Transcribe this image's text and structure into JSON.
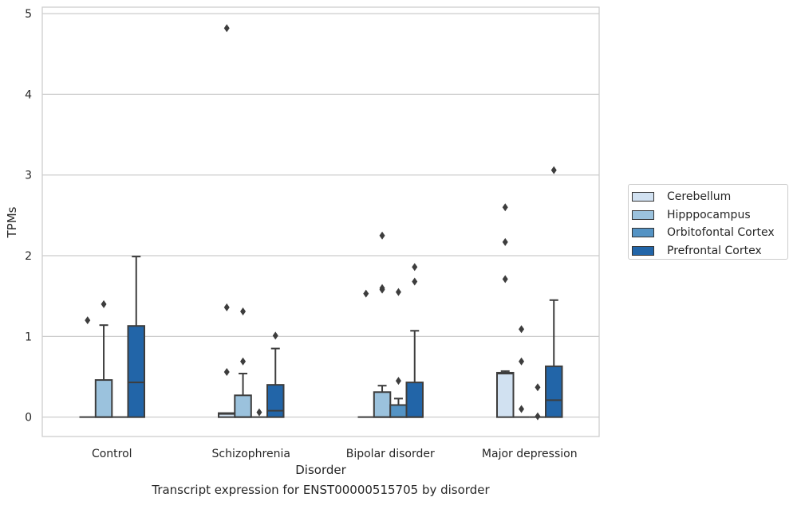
{
  "caption": "Transcript expression for ENST00000515705 by disorder",
  "chart_data": {
    "type": "boxplot",
    "xlabel": "Disorder",
    "ylabel": "TPMs",
    "ylim": [
      -0.24,
      5.08
    ],
    "yticks": [
      0,
      1,
      2,
      3,
      4,
      5
    ],
    "grid": "horizontal",
    "legend_position": "right",
    "categories": [
      "Control",
      "Schizophrenia",
      "Bipolar disorder",
      "Major depression"
    ],
    "series": [
      {
        "name": "Cerebellum",
        "color": "#d1e1f1",
        "boxes": [
          {
            "q1": 0,
            "median": 0,
            "q3": 0,
            "whislo": 0,
            "whishi": 0,
            "fliers": [
              1.2
            ]
          },
          {
            "q1": 0,
            "median": 0.04,
            "q3": 0.05,
            "whislo": 0,
            "whishi": 0.05,
            "fliers": [
              0.56,
              1.36,
              4.82
            ]
          },
          {
            "q1": 0,
            "median": 0,
            "q3": 0,
            "whislo": 0,
            "whishi": 0,
            "fliers": [
              1.53
            ]
          },
          {
            "q1": 0,
            "median": 0.54,
            "q3": 0.55,
            "whislo": 0,
            "whishi": 0.57,
            "fliers": [
              1.71,
              2.17,
              2.6
            ]
          }
        ]
      },
      {
        "name": "Hipppocampus",
        "color": "#9bc2dd",
        "boxes": [
          {
            "q1": 0,
            "median": 0,
            "q3": 0.46,
            "whislo": 0,
            "whishi": 1.14,
            "fliers": [
              1.4
            ]
          },
          {
            "q1": 0,
            "median": 0,
            "q3": 0.27,
            "whislo": 0,
            "whishi": 0.54,
            "fliers": [
              0.69,
              1.31
            ]
          },
          {
            "q1": 0,
            "median": 0,
            "q3": 0.31,
            "whislo": 0,
            "whishi": 0.39,
            "fliers": [
              1.58,
              1.6,
              2.25
            ]
          },
          {
            "q1": 0,
            "median": 0,
            "q3": 0,
            "whislo": 0,
            "whishi": 0,
            "fliers": [
              0.1,
              0.69,
              1.09
            ]
          }
        ]
      },
      {
        "name": "Orbitofontal Cortex",
        "color": "#5493c4",
        "boxes": [
          {
            "q1": 0,
            "median": 0,
            "q3": 0,
            "whislo": 0,
            "whishi": 0,
            "fliers": []
          },
          {
            "q1": 0,
            "median": 0,
            "q3": 0,
            "whislo": 0,
            "whishi": 0,
            "fliers": [
              0.06
            ]
          },
          {
            "q1": 0,
            "median": 0,
            "q3": 0.15,
            "whislo": 0,
            "whishi": 0.23,
            "fliers": [
              0.45,
              1.55
            ]
          },
          {
            "q1": 0,
            "median": 0,
            "q3": 0,
            "whislo": 0,
            "whishi": 0,
            "fliers": [
              0.01,
              0.37
            ]
          }
        ]
      },
      {
        "name": "Prefrontal Cortex",
        "color": "#2265a8",
        "boxes": [
          {
            "q1": 0,
            "median": 0.43,
            "q3": 1.13,
            "whislo": 0,
            "whishi": 1.99,
            "fliers": []
          },
          {
            "q1": 0,
            "median": 0.08,
            "q3": 0.4,
            "whislo": 0,
            "whishi": 0.85,
            "fliers": [
              1.01
            ]
          },
          {
            "q1": 0,
            "median": 0,
            "q3": 0.43,
            "whislo": 0,
            "whishi": 1.07,
            "fliers": [
              1.68,
              1.86
            ]
          },
          {
            "q1": 0,
            "median": 0.21,
            "q3": 0.63,
            "whislo": 0,
            "whishi": 1.45,
            "fliers": [
              3.06
            ]
          }
        ]
      }
    ]
  }
}
